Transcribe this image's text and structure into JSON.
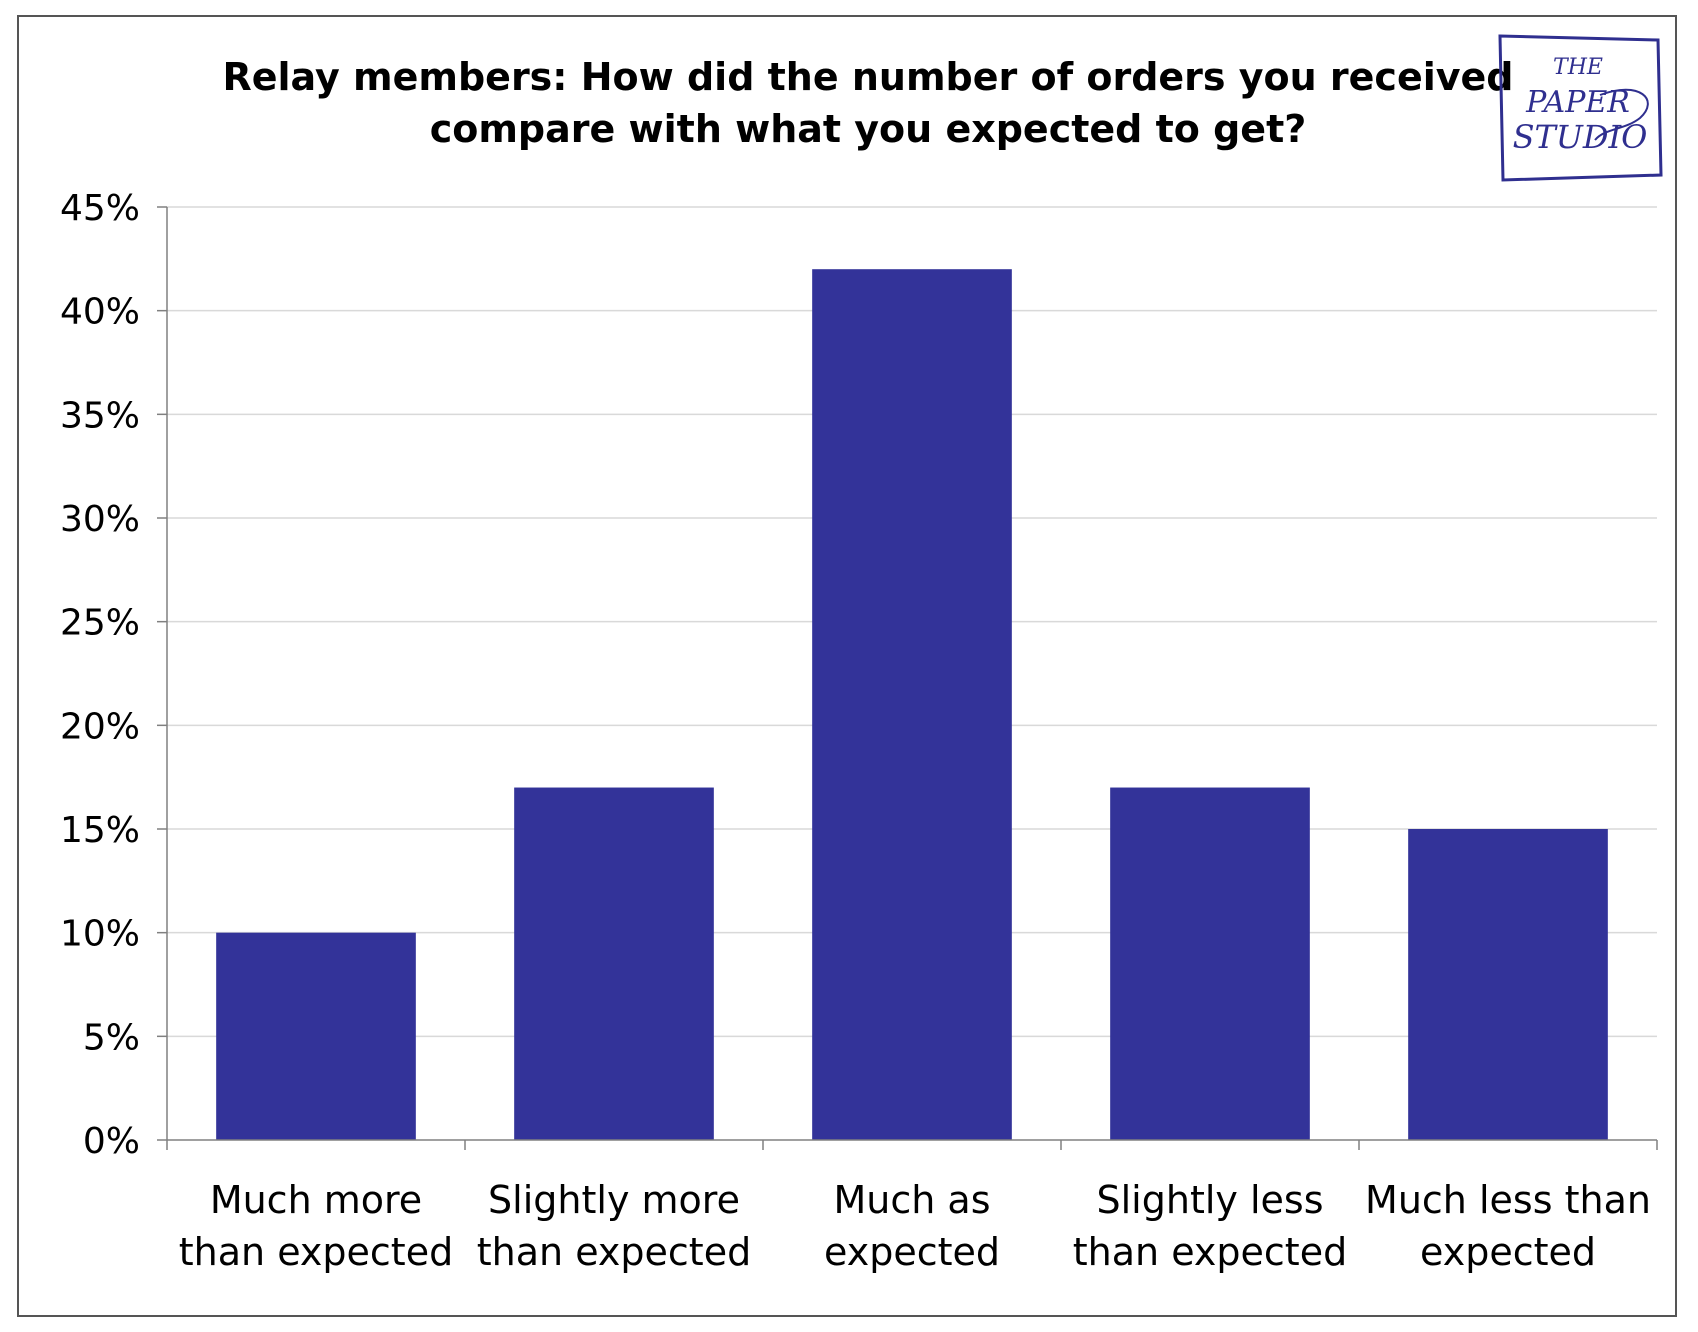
{
  "chart_data": {
    "type": "bar",
    "title": [
      "Relay members: How did the number of orders you received",
      "compare with what you expected to get?"
    ],
    "categories": [
      [
        "Much more",
        "than expected"
      ],
      [
        "Slightly more",
        "than expected"
      ],
      [
        "Much as",
        "expected"
      ],
      [
        "Slightly less",
        "than expected"
      ],
      [
        "Much less than",
        "expected"
      ]
    ],
    "values": [
      10,
      17,
      42,
      17,
      15
    ],
    "ylim": [
      0,
      45
    ],
    "ytick_step": 5,
    "ytick_labels": [
      "0%",
      "5%",
      "10%",
      "15%",
      "20%",
      "25%",
      "30%",
      "35%",
      "40%",
      "45%"
    ],
    "grid": true,
    "bar_color": "#333399",
    "grid_color": "#d9d9d9",
    "axis_color": "#808080"
  },
  "logo": {
    "lines": [
      "THE",
      "PAPER",
      "STUDIO"
    ],
    "color": "#2f2f8f"
  }
}
